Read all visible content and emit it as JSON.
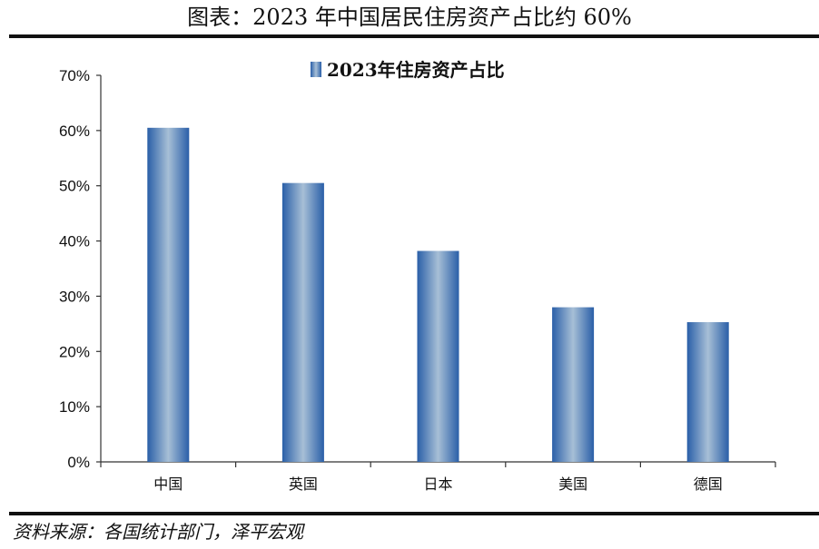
{
  "figure": {
    "title": "图表：2023 年中国居民住房资产占比约 60%",
    "source": "资料来源：各国统计部门，泽平宏观"
  },
  "chart_data": {
    "type": "bar",
    "categories": [
      "中国",
      "英国",
      "日本",
      "美国",
      "德国"
    ],
    "series": [
      {
        "name": "2023年住房资产占比",
        "values": [
          60.5,
          50.5,
          38.2,
          28.0,
          25.3
        ]
      }
    ],
    "ylim": [
      0,
      70
    ],
    "yticks": [
      0,
      10,
      20,
      30,
      40,
      50,
      60,
      70
    ],
    "ytick_labels": [
      "0%",
      "10%",
      "20%",
      "30%",
      "40%",
      "50%",
      "60%",
      "70%"
    ],
    "grid": false,
    "legend": "top-center",
    "bar_color": "#4a7ab8"
  }
}
